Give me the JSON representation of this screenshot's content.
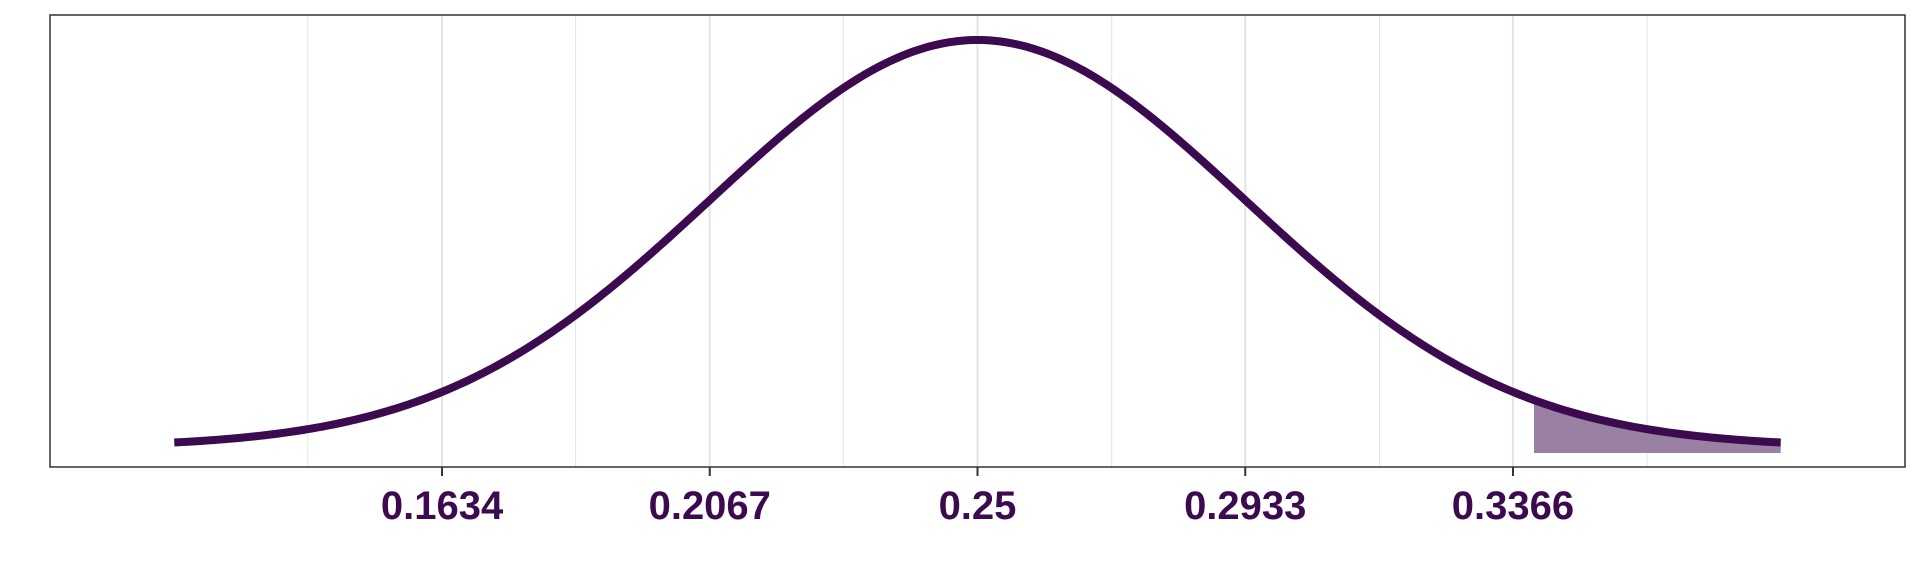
{
  "chart_data": {
    "type": "area",
    "title": "",
    "xlabel": "",
    "ylabel": "",
    "distribution": "normal density curve",
    "mean": 0.25,
    "sd": 0.0433,
    "xlim": [
      0.1,
      0.4
    ],
    "curve_x_range": [
      0.1201,
      0.3799
    ],
    "shaded_region": {
      "from": 0.34,
      "to": 0.3799
    },
    "x_ticks": [
      0.1634,
      0.2067,
      0.25,
      0.2933,
      0.3366
    ],
    "x_tick_labels": [
      "0.1634",
      "0.2067",
      "0.25",
      "0.2933",
      "0.3366"
    ],
    "x_minor_gridlines": [
      0.1417,
      0.185,
      0.2283,
      0.2717,
      0.315,
      0.3583
    ],
    "y_axis_visible": false,
    "grid": "vertical",
    "legend": "none",
    "colors": {
      "curve": "#3b0a4f",
      "fill": "#9a80a2",
      "tick_label": "#3b0a4f",
      "grid": "#e3e3e3",
      "frame": "#333333"
    }
  }
}
